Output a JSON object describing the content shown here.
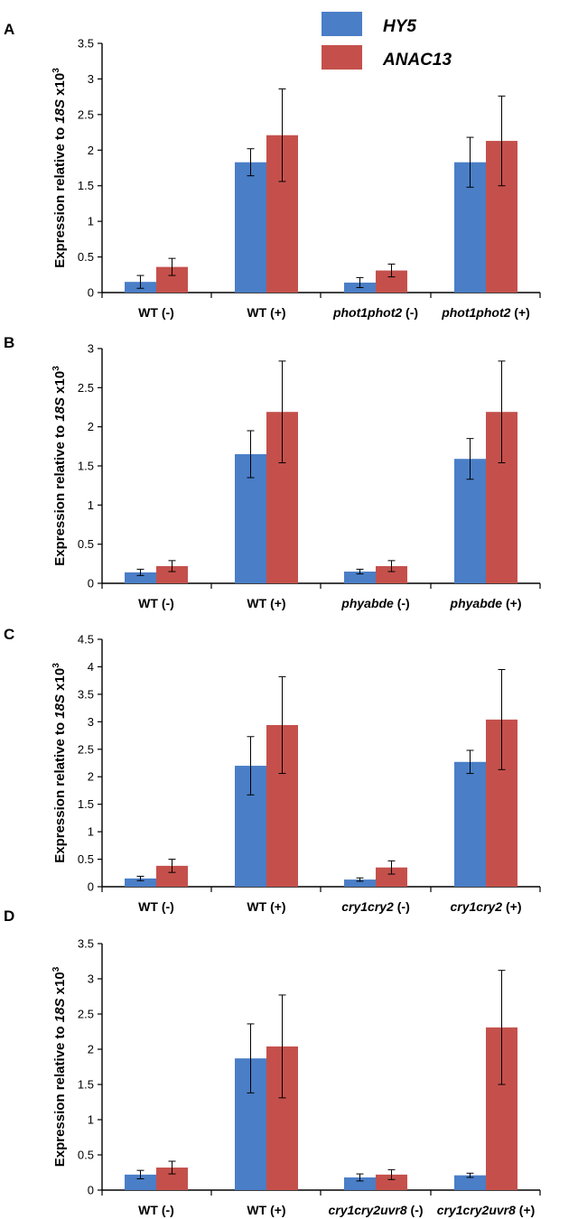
{
  "legend": [
    {
      "name": "HY5",
      "color": "#4A7EC7"
    },
    {
      "name": "ANAC13",
      "color": "#C5504B"
    }
  ],
  "y_label_parts": [
    "Expression relative to ",
    "18S",
    " x10",
    "3"
  ],
  "chart_data": [
    {
      "panel": "A",
      "type": "bar",
      "categories": [
        {
          "parts": [
            [
              "WT (-)",
              false
            ]
          ]
        },
        {
          "parts": [
            [
              "WT (+)",
              false
            ]
          ]
        },
        {
          "parts": [
            [
              "phot1phot2",
              true
            ],
            [
              " (-)",
              false
            ]
          ]
        },
        {
          "parts": [
            [
              "phot1phot2",
              true
            ],
            [
              " (+)",
              false
            ]
          ]
        }
      ],
      "series": [
        {
          "name": "HY5",
          "values": [
            0.15,
            1.83,
            0.14,
            1.83
          ],
          "errors": [
            0.09,
            0.19,
            0.07,
            0.35
          ]
        },
        {
          "name": "ANAC13",
          "values": [
            0.36,
            2.21,
            0.31,
            2.13
          ],
          "errors": [
            0.12,
            0.65,
            0.09,
            0.63
          ]
        }
      ],
      "ylim": [
        0,
        3.5
      ],
      "yticks": [
        "0",
        "0.5",
        "1",
        "1.5",
        "2",
        "2.5",
        "3",
        "3.5"
      ]
    },
    {
      "panel": "B",
      "type": "bar",
      "categories": [
        {
          "parts": [
            [
              "WT (-)",
              false
            ]
          ]
        },
        {
          "parts": [
            [
              "WT (+)",
              false
            ]
          ]
        },
        {
          "parts": [
            [
              "phyabde",
              true
            ],
            [
              " (-)",
              false
            ]
          ]
        },
        {
          "parts": [
            [
              "phyabde",
              true
            ],
            [
              " (+)",
              false
            ]
          ]
        }
      ],
      "series": [
        {
          "name": "HY5",
          "values": [
            0.14,
            1.65,
            0.15,
            1.59
          ],
          "errors": [
            0.04,
            0.3,
            0.03,
            0.26
          ]
        },
        {
          "name": "ANAC13",
          "values": [
            0.22,
            2.19,
            0.22,
            2.19
          ],
          "errors": [
            0.07,
            0.65,
            0.07,
            0.65
          ]
        }
      ],
      "ylim": [
        0,
        3
      ],
      "yticks": [
        "0",
        "0.5",
        "1",
        "1.5",
        "2",
        "2.5",
        "3"
      ]
    },
    {
      "panel": "C",
      "type": "bar",
      "categories": [
        {
          "parts": [
            [
              "WT (-)",
              false
            ]
          ]
        },
        {
          "parts": [
            [
              "WT (+)",
              false
            ]
          ]
        },
        {
          "parts": [
            [
              "cry1cry2",
              true
            ],
            [
              " (-)",
              false
            ]
          ]
        },
        {
          "parts": [
            [
              "cry1cry2",
              true
            ],
            [
              " (+)",
              false
            ]
          ]
        }
      ],
      "series": [
        {
          "name": "HY5",
          "values": [
            0.15,
            2.2,
            0.13,
            2.27
          ],
          "errors": [
            0.04,
            0.53,
            0.03,
            0.21
          ]
        },
        {
          "name": "ANAC13",
          "values": [
            0.38,
            2.94,
            0.35,
            3.04
          ],
          "errors": [
            0.12,
            0.88,
            0.12,
            0.91
          ]
        }
      ],
      "ylim": [
        0,
        4.5
      ],
      "yticks": [
        "0",
        "0.5",
        "1",
        "1.5",
        "2",
        "2.5",
        "3",
        "3.5",
        "4",
        "4.5"
      ]
    },
    {
      "panel": "D",
      "type": "bar",
      "categories": [
        {
          "parts": [
            [
              "WT (-)",
              false
            ]
          ]
        },
        {
          "parts": [
            [
              "WT (+)",
              false
            ]
          ]
        },
        {
          "parts": [
            [
              "cry1cry2uvr8",
              true
            ],
            [
              " (-)",
              false
            ]
          ]
        },
        {
          "parts": [
            [
              "cry1cry2uvr8",
              true
            ],
            [
              " (+)",
              false
            ]
          ]
        }
      ],
      "series": [
        {
          "name": "HY5",
          "values": [
            0.22,
            1.87,
            0.18,
            0.21
          ],
          "errors": [
            0.06,
            0.49,
            0.05,
            0.03
          ]
        },
        {
          "name": "ANAC13",
          "values": [
            0.32,
            2.04,
            0.22,
            2.31
          ],
          "errors": [
            0.09,
            0.73,
            0.07,
            0.81
          ]
        }
      ],
      "ylim": [
        0,
        3.5
      ],
      "yticks": [
        "0",
        "0.5",
        "1",
        "1.5",
        "2",
        "2.5",
        "3",
        "3.5"
      ]
    }
  ]
}
